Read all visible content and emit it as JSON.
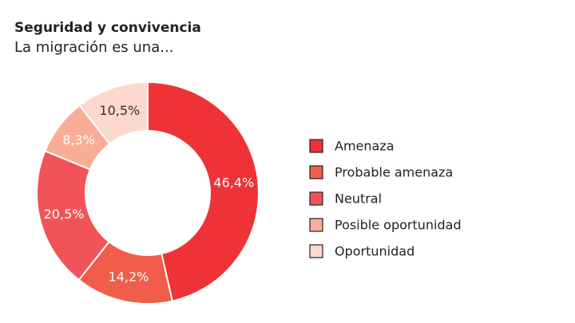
{
  "chart_data": {
    "type": "donut",
    "title": "Seguridad y convivencia",
    "subtitle": "La migración es una...",
    "categories": [
      "Amenaza",
      "Probable amenaza",
      "Neutral",
      "Posible oportunidad",
      "Oportunidad"
    ],
    "values": [
      46.4,
      14.2,
      20.5,
      8.3,
      10.5
    ],
    "value_labels": [
      "46,4%",
      "14,2%",
      "20,5%",
      "8,3%",
      "10,5%"
    ],
    "colors": [
      "#ee3236",
      "#f05d48",
      "#f15358",
      "#f9ad97",
      "#fdd8cd"
    ],
    "legend": "right"
  }
}
